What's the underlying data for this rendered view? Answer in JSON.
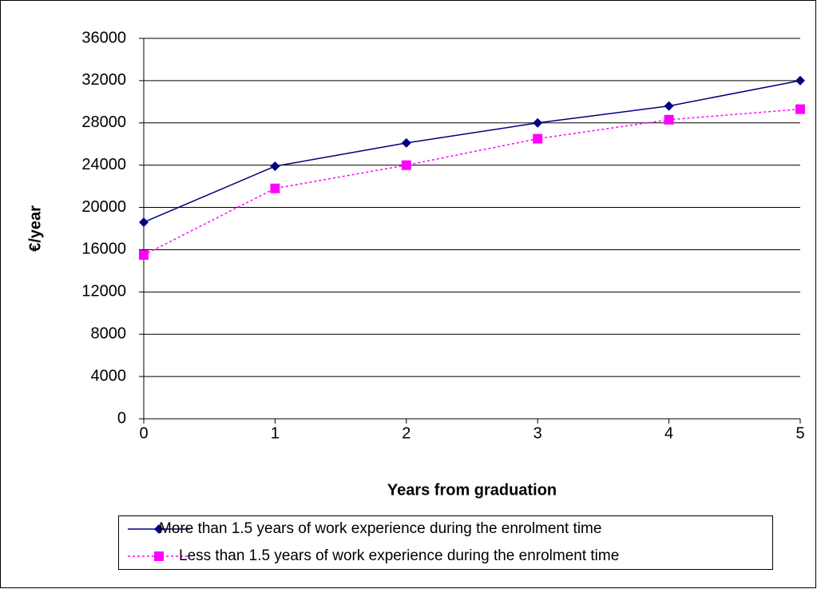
{
  "chart_data": {
    "type": "line",
    "x_label": "Years from graduation",
    "y_label": "€/year",
    "x": [
      0,
      1,
      2,
      3,
      4,
      5
    ],
    "xlim": [
      0,
      5
    ],
    "xticks": [
      0,
      1,
      2,
      3,
      4,
      5
    ],
    "ylim": [
      0,
      36000
    ],
    "yticks": [
      0,
      4000,
      8000,
      12000,
      16000,
      20000,
      24000,
      28000,
      32000,
      36000
    ],
    "grid": true,
    "legend": "bottom",
    "series": [
      {
        "name": "More than 1.5 years of work experience during the enrolment time",
        "color": "#000080",
        "marker": "diamond",
        "line_style": "solid",
        "values": [
          18600,
          23900,
          26100,
          28000,
          29600,
          32000
        ]
      },
      {
        "name": "Less than 1.5 years of work experience during the enrolment time",
        "color": "#ff00ff",
        "marker": "square",
        "line_style": "dotted",
        "values": [
          15500,
          21800,
          24000,
          26500,
          28300,
          29300
        ]
      }
    ]
  }
}
